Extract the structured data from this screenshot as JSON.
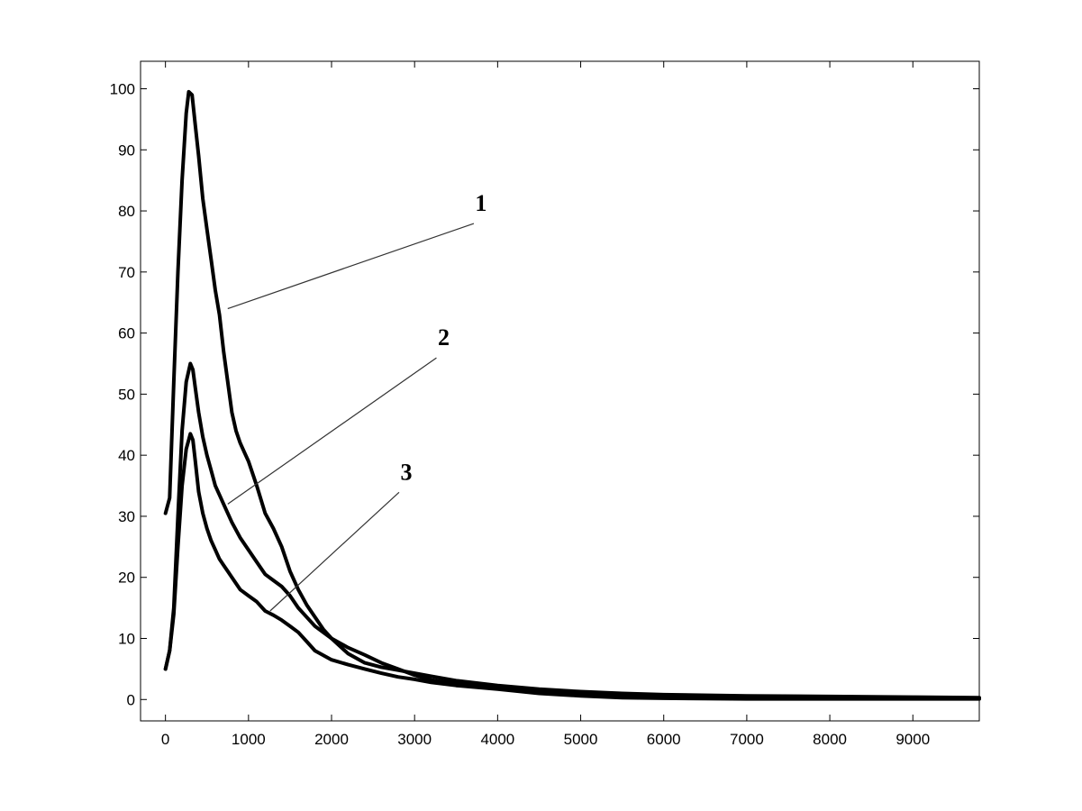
{
  "chart_data": {
    "type": "line",
    "title": "",
    "xlabel": "",
    "ylabel": "",
    "xlim": [
      -300,
      9800
    ],
    "ylim": [
      -3.5,
      104.5
    ],
    "xticks": [
      0,
      1000,
      2000,
      3000,
      4000,
      5000,
      6000,
      7000,
      8000,
      9000
    ],
    "yticks": [
      0,
      10,
      20,
      30,
      40,
      50,
      60,
      70,
      80,
      90,
      100
    ],
    "grid": false,
    "legend": "none",
    "line_color": "#000000",
    "series": [
      {
        "label": "1",
        "label_anchor": [
          3800,
          80
        ],
        "leader_point": [
          750,
          64
        ],
        "x": [
          0,
          50,
          100,
          150,
          200,
          250,
          280,
          320,
          360,
          400,
          450,
          500,
          550,
          600,
          650,
          700,
          750,
          800,
          850,
          900,
          950,
          1000,
          1100,
          1200,
          1300,
          1400,
          1500,
          1600,
          1700,
          1800,
          1900,
          2000,
          2200,
          2400,
          2600,
          2800,
          3000,
          3200,
          3500,
          4000,
          4500,
          5000,
          5500,
          6000,
          7000,
          8000,
          9000,
          9800
        ],
        "y": [
          30.5,
          33,
          52,
          70,
          85,
          96,
          99.5,
          99,
          94,
          89,
          82,
          77,
          72,
          67,
          63,
          57,
          52,
          47,
          44,
          42,
          40.5,
          39,
          35,
          30.5,
          28,
          25,
          21,
          18,
          15.5,
          13.5,
          11.5,
          10,
          7.5,
          6,
          5.3,
          4.8,
          4.3,
          3.8,
          3.1,
          2.3,
          1.7,
          1.3,
          1,
          0.8,
          0.6,
          0.5,
          0.4,
          0.3
        ]
      },
      {
        "label": "2",
        "label_anchor": [
          3350,
          58
        ],
        "leader_point": [
          750,
          32
        ],
        "x": [
          0,
          50,
          100,
          150,
          200,
          250,
          300,
          330,
          360,
          400,
          450,
          500,
          550,
          600,
          650,
          700,
          750,
          800,
          900,
          1000,
          1100,
          1200,
          1300,
          1400,
          1500,
          1600,
          1700,
          1800,
          2000,
          2200,
          2400,
          2600,
          2800,
          3000,
          3200,
          3500,
          4000,
          4500,
          5000,
          5500,
          6000,
          7000,
          8000,
          9000,
          9800
        ],
        "y": [
          5,
          8,
          15,
          30,
          44,
          52,
          55,
          54,
          51,
          47,
          43,
          40,
          37.5,
          35,
          33.5,
          32,
          30.5,
          29,
          26.5,
          24.5,
          22.5,
          20.5,
          19.5,
          18.5,
          17,
          15,
          13.5,
          12,
          10,
          8.5,
          7.3,
          6,
          5,
          4,
          3.2,
          2.6,
          1.9,
          1.4,
          1,
          0.7,
          0.5,
          0.3,
          0.2,
          0.2,
          0.2
        ]
      },
      {
        "label": "3",
        "label_anchor": [
          2900,
          36
        ],
        "leader_point": [
          1260,
          14.5
        ],
        "x": [
          0,
          50,
          100,
          150,
          200,
          250,
          300,
          330,
          360,
          400,
          450,
          500,
          550,
          600,
          650,
          700,
          800,
          900,
          1000,
          1100,
          1200,
          1300,
          1400,
          1500,
          1600,
          1700,
          1800,
          2000,
          2200,
          2400,
          2600,
          2800,
          3000,
          3200,
          3500,
          4000,
          4500,
          5000,
          5500,
          6000,
          7000,
          8000,
          9000,
          9800
        ],
        "y": [
          5,
          8,
          14,
          25,
          35,
          41,
          43.5,
          42.5,
          39,
          34,
          30.5,
          28,
          26,
          24.5,
          23,
          22,
          20,
          18,
          17,
          16,
          14.5,
          13.8,
          13,
          12,
          11,
          9.5,
          8,
          6.5,
          5.7,
          5,
          4.3,
          3.7,
          3.3,
          2.8,
          2.3,
          1.7,
          1,
          0.6,
          0.3,
          0.2,
          0.1,
          0.1,
          0.1,
          0.1
        ]
      }
    ]
  }
}
